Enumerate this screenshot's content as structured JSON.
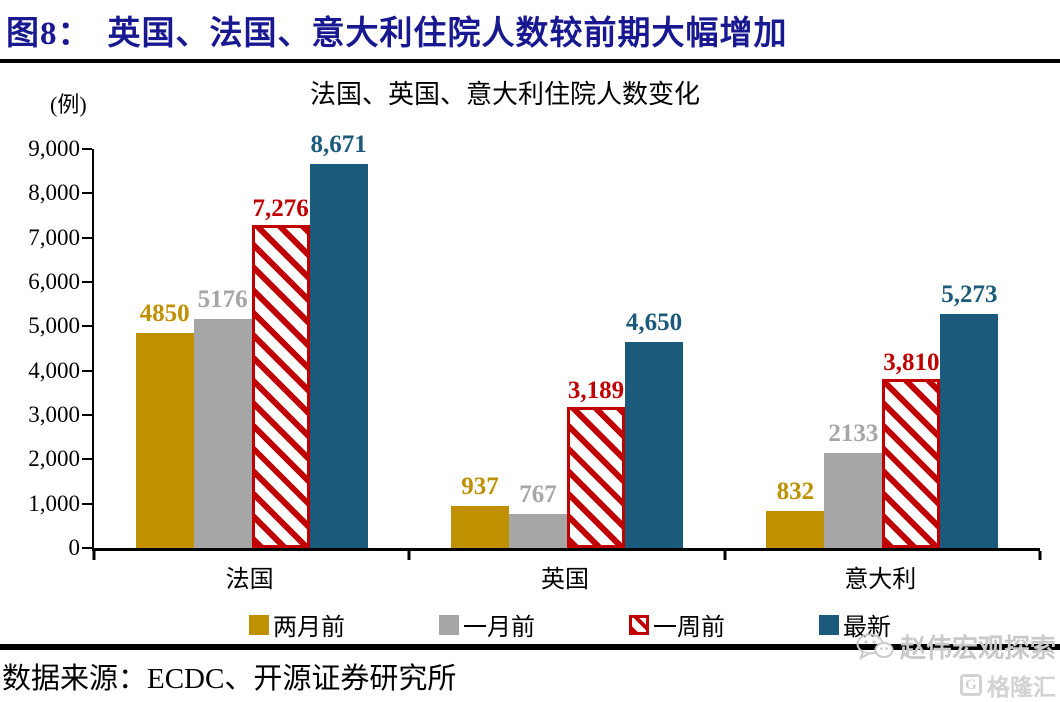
{
  "figure_header": {
    "prefix": "图8：",
    "title": "英国、法国、意大利住院人数较前期大幅增加"
  },
  "chart_data": {
    "type": "bar",
    "title": "法国、英国、意大利住院人数变化",
    "unit": "(例)",
    "categories": [
      "法国",
      "英国",
      "意大利"
    ],
    "series": [
      {
        "name": "两月前",
        "color": "#BF9000",
        "hatch": false,
        "values": [
          4850,
          937,
          832
        ],
        "labels": [
          "4850",
          "937",
          "832"
        ]
      },
      {
        "name": "一月前",
        "color": "#A6A6A6",
        "hatch": false,
        "values": [
          5176,
          767,
          2133
        ],
        "labels": [
          "5176",
          "767",
          "2133"
        ]
      },
      {
        "name": "一周前",
        "color": "#C00000",
        "hatch": true,
        "values": [
          7276,
          3189,
          3810
        ],
        "labels": [
          "7,276",
          "3,189",
          "3,810"
        ]
      },
      {
        "name": "最新",
        "color": "#1B5A7B",
        "hatch": false,
        "values": [
          8671,
          4650,
          5273
        ],
        "labels": [
          "8,671",
          "4,650",
          "5,273"
        ]
      }
    ],
    "ylim": [
      0,
      9000
    ],
    "ytick_step": 1000,
    "yticks": [
      "0",
      "1,000",
      "2,000",
      "3,000",
      "4,000",
      "5,000",
      "6,000",
      "7,000",
      "8,000",
      "9,000"
    ],
    "xlabel": "",
    "ylabel": "(例)",
    "grid": false,
    "legend_position": "bottom"
  },
  "footer": {
    "source": "数据来源：ECDC、开源证券研究所"
  },
  "watermark": {
    "account_name": "赵伟宏观探索",
    "logo_glyph": "G",
    "logo_text": "格隆汇"
  },
  "colors": {
    "header_text": "#181890",
    "rule": "#000000",
    "series_gold": "#BF9000",
    "series_gray": "#A6A6A6",
    "series_red": "#C00000",
    "series_blue": "#1B5A7B"
  }
}
